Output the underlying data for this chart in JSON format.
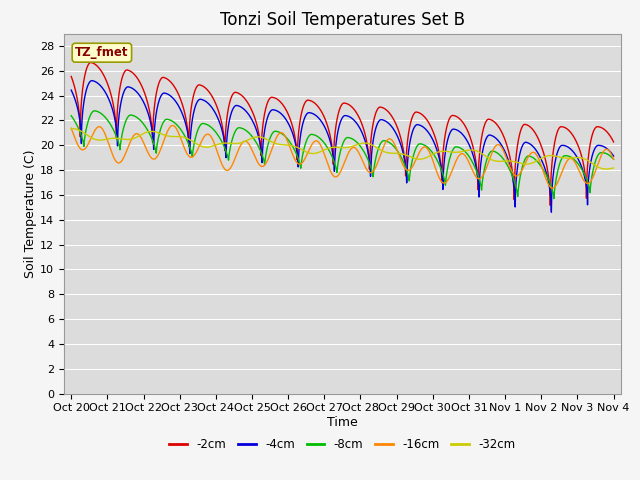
{
  "title": "Tonzi Soil Temperatures Set B",
  "xlabel": "Time",
  "ylabel": "Soil Temperature (C)",
  "ylim": [
    0,
    29
  ],
  "legend_label": "TZ_fmet",
  "lines": [
    {
      "label": "-2cm",
      "color": "#dd0000",
      "linewidth": 1.2
    },
    {
      "label": "-4cm",
      "color": "#0000dd",
      "linewidth": 1.2
    },
    {
      "label": "-8cm",
      "color": "#00bb00",
      "linewidth": 1.2
    },
    {
      "label": "-16cm",
      "color": "#ff8800",
      "linewidth": 1.2
    },
    {
      "label": "-32cm",
      "color": "#cccc00",
      "linewidth": 1.2
    }
  ],
  "xtick_labels": [
    "Oct 20",
    "Oct 21",
    "Oct 22",
    "Oct 23",
    "Oct 24",
    "Oct 25",
    "Oct 26",
    "Oct 27",
    "Oct 28",
    "Oct 29",
    "Oct 30",
    "Oct 31",
    "Nov 1",
    "Nov 2",
    "Nov 3",
    "Nov 4"
  ],
  "ytick_values": [
    0,
    2,
    4,
    6,
    8,
    10,
    12,
    14,
    16,
    18,
    20,
    22,
    24,
    26,
    28
  ],
  "title_fontsize": 12,
  "axis_label_fontsize": 9,
  "tick_fontsize": 8
}
